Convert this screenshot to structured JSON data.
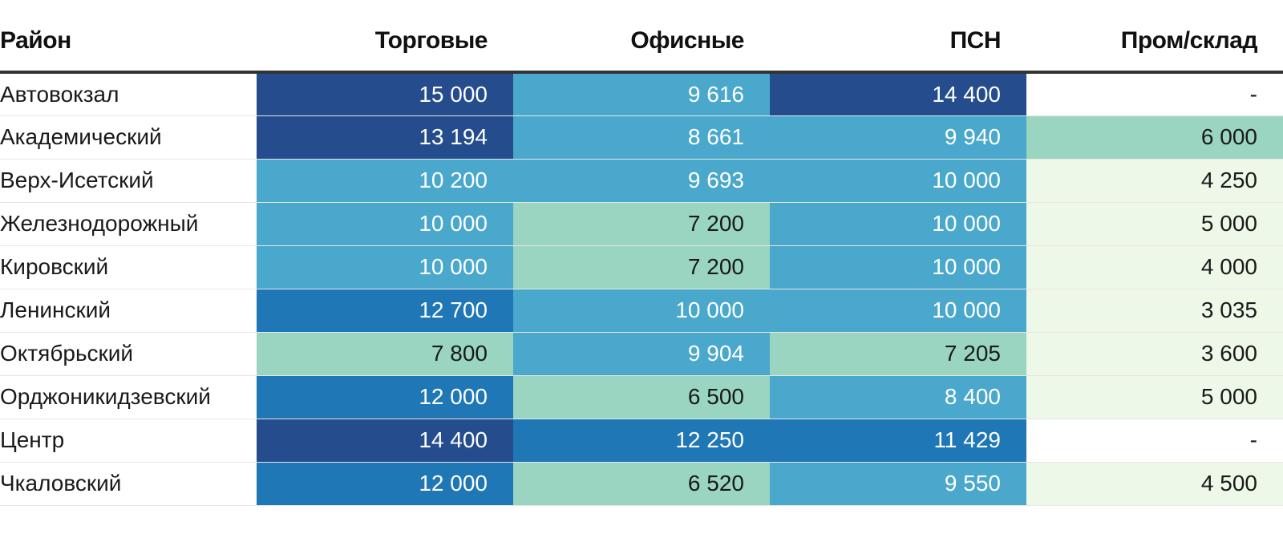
{
  "chart_data": {
    "type": "table",
    "columns": [
      "Район",
      "Торговые",
      "Офисные",
      "ПСН",
      "Пром/склад"
    ],
    "rows": [
      {
        "name": "Автовокзал",
        "values": [
          "15 000",
          "9 616",
          "14 400",
          "-"
        ]
      },
      {
        "name": "Академический",
        "values": [
          "13 194",
          "8 661",
          "9 940",
          "6 000"
        ]
      },
      {
        "name": "Верх-Исетский",
        "values": [
          "10 200",
          "9 693",
          "10 000",
          "4 250"
        ]
      },
      {
        "name": "Железнодорожный",
        "values": [
          "10 000",
          "7 200",
          "10 000",
          "5 000"
        ]
      },
      {
        "name": "Кировский",
        "values": [
          "10 000",
          "7 200",
          "10 000",
          "4 000"
        ]
      },
      {
        "name": "Ленинский",
        "values": [
          "12 700",
          "10 000",
          "10 000",
          "3 035"
        ]
      },
      {
        "name": "Октябрьский",
        "values": [
          "7 800",
          "9 904",
          "7 205",
          "3 600"
        ]
      },
      {
        "name": "Орджоникидзевский",
        "values": [
          "12 000",
          "6 500",
          "8 400",
          "5 000"
        ]
      },
      {
        "name": "Центр",
        "values": [
          "14 400",
          "12 250",
          "11 429",
          "-"
        ]
      },
      {
        "name": "Чкаловский",
        "values": [
          "12 000",
          "6 520",
          "9 550",
          "4 500"
        ]
      }
    ],
    "color_bins": [
      {
        "min": 0,
        "max": 0,
        "bg": "#ffffff",
        "fg": "#1a1a1a"
      },
      {
        "min": 1,
        "max": 6000,
        "bg": "#edf8e8",
        "fg": "#1a1a1a"
      },
      {
        "min": 6000,
        "max": 8000,
        "bg": "#99d5c1",
        "fg": "#1a1a1a"
      },
      {
        "min": 8000,
        "max": 11000,
        "bg": "#4aa8cc",
        "fg": "#ffffff"
      },
      {
        "min": 11000,
        "max": 13000,
        "bg": "#1f77b6",
        "fg": "#ffffff"
      },
      {
        "min": 13000,
        "max": 99999,
        "bg": "#254d8d",
        "fg": "#ffffff"
      }
    ]
  }
}
